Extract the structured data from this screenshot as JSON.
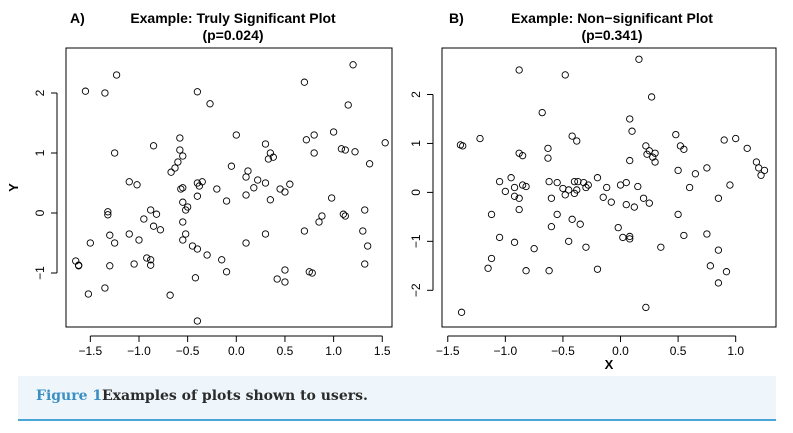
{
  "chart_data": [
    {
      "type": "scatter",
      "panel_label": "A)",
      "title": "Example: Truly Significant Plot",
      "subtitle": "(p=0.024)",
      "xlabel": "",
      "ylabel": "Y",
      "xlim": [
        -1.75,
        1.6
      ],
      "ylim": [
        -1.9,
        2.75
      ],
      "xticks": [
        -1.5,
        -1.0,
        -0.5,
        0.0,
        0.5,
        1.0,
        1.5
      ],
      "xtick_labels": [
        "−1.5",
        "−1.0",
        "−0.5",
        "0.0",
        "0.5",
        "1.0",
        "1.5"
      ],
      "yticks": [
        -1,
        0,
        1,
        2
      ],
      "ytick_labels": [
        "−1",
        "0",
        "1",
        "2"
      ],
      "grid": false,
      "points": [
        [
          -1.55,
          2.03
        ],
        [
          -1.35,
          2.0
        ],
        [
          -1.23,
          2.3
        ],
        [
          -0.4,
          2.02
        ],
        [
          -0.27,
          1.82
        ],
        [
          0.7,
          2.18
        ],
        [
          1.2,
          2.47
        ],
        [
          1.15,
          1.8
        ],
        [
          -1.25,
          1.0
        ],
        [
          -0.85,
          1.12
        ],
        [
          -0.58,
          1.25
        ],
        [
          -0.58,
          1.05
        ],
        [
          -0.55,
          0.95
        ],
        [
          -0.6,
          0.85
        ],
        [
          -0.63,
          0.75
        ],
        [
          -0.67,
          0.68
        ],
        [
          0.0,
          1.3
        ],
        [
          0.3,
          1.15
        ],
        [
          0.35,
          1.0
        ],
        [
          0.38,
          0.93
        ],
        [
          0.33,
          0.9
        ],
        [
          0.72,
          1.22
        ],
        [
          0.8,
          1.3
        ],
        [
          1.0,
          1.35
        ],
        [
          1.08,
          1.07
        ],
        [
          1.12,
          1.05
        ],
        [
          1.22,
          1.02
        ],
        [
          1.53,
          1.17
        ],
        [
          1.37,
          0.82
        ],
        [
          0.8,
          1.0
        ],
        [
          -1.1,
          0.52
        ],
        [
          -1.02,
          0.47
        ],
        [
          -0.55,
          0.42
        ],
        [
          -0.57,
          0.4
        ],
        [
          -0.35,
          0.52
        ],
        [
          -0.4,
          0.5
        ],
        [
          -0.38,
          0.45
        ],
        [
          -0.2,
          0.4
        ],
        [
          -0.05,
          0.78
        ],
        [
          0.12,
          0.7
        ],
        [
          0.1,
          0.6
        ],
        [
          0.22,
          0.55
        ],
        [
          0.1,
          0.3
        ],
        [
          0.18,
          0.42
        ],
        [
          0.3,
          0.5
        ],
        [
          0.45,
          0.4
        ],
        [
          0.5,
          0.35
        ],
        [
          0.55,
          0.48
        ],
        [
          -0.4,
          0.28
        ],
        [
          -0.55,
          0.18
        ],
        [
          -0.5,
          0.1
        ],
        [
          -0.52,
          0.05
        ],
        [
          -0.1,
          0.2
        ],
        [
          0.35,
          0.22
        ],
        [
          -1.32,
          0.02
        ],
        [
          -1.32,
          -0.03
        ],
        [
          -0.88,
          0.05
        ],
        [
          -0.82,
          -0.02
        ],
        [
          -0.95,
          -0.1
        ],
        [
          -0.85,
          -0.22
        ],
        [
          -0.78,
          -0.28
        ],
        [
          -0.55,
          -0.15
        ],
        [
          -0.52,
          -0.35
        ],
        [
          0.98,
          0.25
        ],
        [
          0.88,
          -0.05
        ],
        [
          0.85,
          -0.15
        ],
        [
          1.1,
          -0.02
        ],
        [
          1.12,
          -0.05
        ],
        [
          1.32,
          0.05
        ],
        [
          1.3,
          -0.3
        ],
        [
          1.35,
          -0.55
        ],
        [
          1.32,
          -0.85
        ],
        [
          -1.3,
          -0.37
        ],
        [
          -1.25,
          -0.5
        ],
        [
          -1.5,
          -0.5
        ],
        [
          -1.1,
          -0.35
        ],
        [
          -1.0,
          -0.45
        ],
        [
          -0.92,
          -0.75
        ],
        [
          -0.88,
          -0.78
        ],
        [
          -0.55,
          -0.45
        ],
        [
          -0.45,
          -0.55
        ],
        [
          -0.4,
          -0.6
        ],
        [
          -0.3,
          -0.7
        ],
        [
          -0.15,
          -0.78
        ],
        [
          0.1,
          -0.5
        ],
        [
          0.3,
          -0.35
        ],
        [
          0.7,
          -0.3
        ],
        [
          -1.65,
          -0.8
        ],
        [
          -1.62,
          -0.87
        ],
        [
          -1.62,
          -0.88
        ],
        [
          -1.3,
          -0.88
        ],
        [
          -1.05,
          -0.85
        ],
        [
          -0.88,
          -0.87
        ],
        [
          -0.1,
          -0.98
        ],
        [
          -0.42,
          -1.08
        ],
        [
          0.42,
          -1.1
        ],
        [
          0.5,
          -1.15
        ],
        [
          0.5,
          -0.95
        ],
        [
          0.75,
          -0.98
        ],
        [
          0.78,
          -1.0
        ],
        [
          -1.52,
          -1.35
        ],
        [
          -1.35,
          -1.25
        ],
        [
          -0.68,
          -1.37
        ],
        [
          -0.4,
          -1.8
        ]
      ]
    },
    {
      "type": "scatter",
      "panel_label": "B)",
      "title": "Example: Non−significant Plot",
      "subtitle": "(p=0.341)",
      "xlabel": "X",
      "ylabel": "",
      "xlim": [
        -1.55,
        1.35
      ],
      "ylim": [
        -2.75,
        2.95
      ],
      "xticks": [
        -1.5,
        -1.0,
        -0.5,
        0.0,
        0.5,
        1.0
      ],
      "xtick_labels": [
        "−1.5",
        "−1.0",
        "−0.5",
        "0.0",
        "0.5",
        "1.0"
      ],
      "yticks": [
        -2,
        -1,
        0,
        1,
        2
      ],
      "ytick_labels": [
        "−2",
        "−1",
        "0",
        "1",
        "2"
      ],
      "grid": false,
      "points": [
        [
          0.16,
          2.72
        ],
        [
          -0.88,
          2.5
        ],
        [
          -0.48,
          2.4
        ],
        [
          0.27,
          1.95
        ],
        [
          -0.68,
          1.63
        ],
        [
          0.08,
          1.5
        ],
        [
          0.1,
          1.25
        ],
        [
          -0.42,
          1.15
        ],
        [
          -0.38,
          1.05
        ],
        [
          0.48,
          1.18
        ],
        [
          0.9,
          1.07
        ],
        [
          1.0,
          1.1
        ],
        [
          1.1,
          0.9
        ],
        [
          -1.39,
          0.97
        ],
        [
          -1.37,
          0.95
        ],
        [
          -1.22,
          1.1
        ],
        [
          -0.88,
          0.8
        ],
        [
          -0.85,
          0.75
        ],
        [
          -0.63,
          0.9
        ],
        [
          -0.63,
          0.7
        ],
        [
          0.22,
          0.95
        ],
        [
          0.25,
          0.85
        ],
        [
          0.3,
          0.8
        ],
        [
          0.23,
          0.78
        ],
        [
          0.28,
          0.72
        ],
        [
          0.52,
          0.95
        ],
        [
          0.55,
          0.88
        ],
        [
          0.08,
          0.65
        ],
        [
          0.3,
          0.62
        ],
        [
          0.5,
          0.45
        ],
        [
          0.65,
          0.38
        ],
        [
          0.75,
          0.5
        ],
        [
          1.18,
          0.62
        ],
        [
          1.2,
          0.5
        ],
        [
          1.25,
          0.45
        ],
        [
          1.22,
          0.35
        ],
        [
          -1.05,
          0.22
        ],
        [
          -0.95,
          0.3
        ],
        [
          -0.92,
          0.1
        ],
        [
          -0.85,
          0.15
        ],
        [
          -0.82,
          0.12
        ],
        [
          -0.62,
          0.22
        ],
        [
          -0.55,
          0.2
        ],
        [
          -0.4,
          0.22
        ],
        [
          -0.37,
          0.22
        ],
        [
          -0.32,
          0.2
        ],
        [
          -0.2,
          0.3
        ],
        [
          -0.5,
          0.08
        ],
        [
          -0.45,
          0.05
        ],
        [
          -0.38,
          0.05
        ],
        [
          -0.3,
          0.1
        ],
        [
          -0.28,
          0.15
        ],
        [
          -0.12,
          0.1
        ],
        [
          0.0,
          0.15
        ],
        [
          0.05,
          0.2
        ],
        [
          0.15,
          0.12
        ],
        [
          0.6,
          0.1
        ],
        [
          0.95,
          0.15
        ],
        [
          -1.0,
          0.02
        ],
        [
          -0.92,
          -0.08
        ],
        [
          -0.88,
          -0.12
        ],
        [
          -0.6,
          -0.12
        ],
        [
          -0.48,
          -0.05
        ],
        [
          -0.4,
          -0.02
        ],
        [
          -0.15,
          -0.1
        ],
        [
          -0.08,
          -0.2
        ],
        [
          0.05,
          -0.25
        ],
        [
          0.12,
          -0.3
        ],
        [
          0.2,
          -0.12
        ],
        [
          0.25,
          -0.22
        ],
        [
          0.85,
          -0.12
        ],
        [
          -1.12,
          -0.45
        ],
        [
          -0.88,
          -0.35
        ],
        [
          -0.6,
          -0.7
        ],
        [
          -0.55,
          -0.45
        ],
        [
          -0.42,
          -0.55
        ],
        [
          -0.35,
          -0.65
        ],
        [
          -0.02,
          -0.72
        ],
        [
          0.08,
          -0.9
        ],
        [
          0.5,
          -0.45
        ],
        [
          0.75,
          -0.85
        ],
        [
          -1.05,
          -0.92
        ],
        [
          -0.92,
          -1.02
        ],
        [
          -0.75,
          -1.15
        ],
        [
          -0.45,
          -1.0
        ],
        [
          -0.3,
          -1.12
        ],
        [
          0.02,
          -0.92
        ],
        [
          0.08,
          -0.95
        ],
        [
          0.35,
          -1.12
        ],
        [
          0.85,
          -1.18
        ],
        [
          0.55,
          -0.88
        ],
        [
          -1.12,
          -1.35
        ],
        [
          -1.15,
          -1.55
        ],
        [
          -0.82,
          -1.6
        ],
        [
          -0.62,
          -1.6
        ],
        [
          -0.2,
          -1.57
        ],
        [
          0.78,
          -1.5
        ],
        [
          0.92,
          -1.62
        ],
        [
          0.85,
          -1.85
        ],
        [
          -1.38,
          -2.45
        ],
        [
          0.22,
          -2.35
        ]
      ]
    }
  ],
  "caption": {
    "label": "Figure 1",
    "text": "Examples of plots shown to users."
  }
}
